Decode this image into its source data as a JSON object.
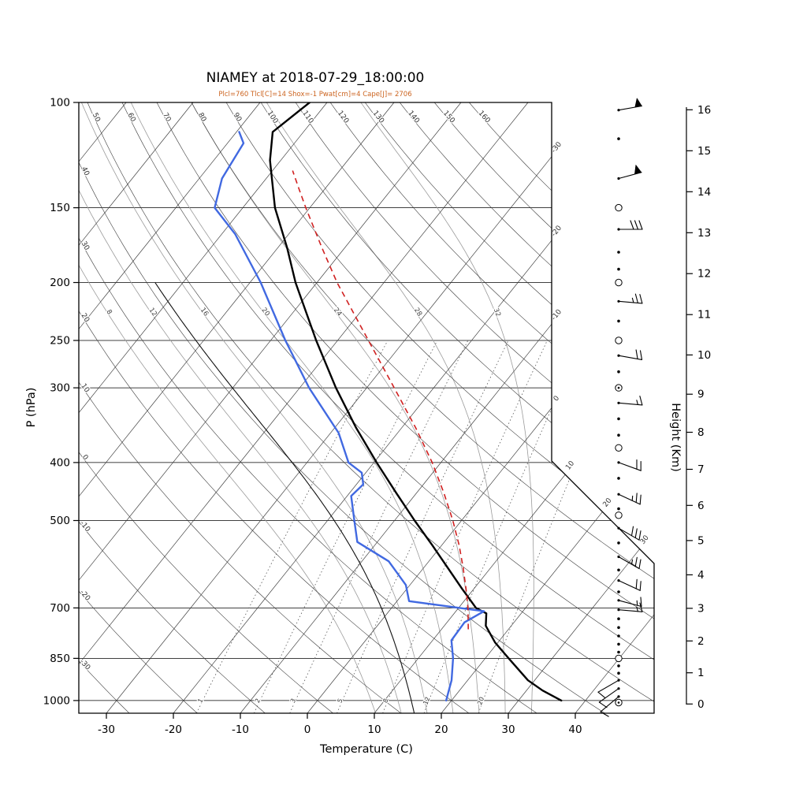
{
  "title": "NIAMEY at 2018-07-29_18:00:00",
  "subtitle": "Plcl=760 Tlcl[C]=14 Shox=-1 Pwat[cm]=4 Cape[J]= 2706",
  "colors": {
    "temperature": "#000000",
    "dewpoint": "#4169e1",
    "parcel": "#d02020",
    "subtitle": "#cc6420",
    "aux_adiabat": "#111111"
  },
  "chart_data": {
    "type": "skewt_log_p_sounding",
    "station": "NIAMEY",
    "datetime": "2018-07-29_18:00:00",
    "parameters": {
      "Plcl": 760,
      "Tlcl_C": 14,
      "Shox": -1,
      "Pwat_cm": 4,
      "Cape_J": 2706
    },
    "xlabel": "Temperature (C)",
    "ylabel": "P (hPa)",
    "y2label": "Height (Km)",
    "pressure_range_hPa": [
      100,
      1050
    ],
    "temperature_axis_range_C": [
      -30,
      40
    ],
    "pressure_ticks": [
      100,
      150,
      200,
      250,
      300,
      400,
      500,
      700,
      850,
      1000
    ],
    "temp_ticks": [
      -30,
      -20,
      -10,
      0,
      10,
      20,
      30,
      40
    ],
    "height_ticks_km": [
      0,
      1,
      2,
      3,
      4,
      5,
      6,
      7,
      8,
      9,
      10,
      11,
      12,
      13,
      14,
      15,
      16
    ],
    "isotherms": {
      "min": -100,
      "max": 40,
      "step": 10,
      "labeled": [
        -30,
        -20,
        -10,
        0,
        10,
        20,
        30
      ]
    },
    "dry_adiabats": {
      "min": -30,
      "max": 160,
      "step": 10,
      "top_edge_labels": [
        50,
        60,
        70,
        80,
        90,
        100,
        110,
        120,
        130,
        140,
        150,
        160
      ],
      "left_edge_labels": [
        40,
        30,
        20,
        10,
        0,
        -10,
        -20,
        -30
      ]
    },
    "moist_adiabats": {
      "values": [
        8,
        12,
        16,
        20,
        24,
        28,
        32
      ],
      "label_pressure_hPa": 225
    },
    "mixing_ratio_g_kg": [
      1,
      2,
      3,
      5,
      8,
      12,
      20
    ],
    "aux_moist_adiabat": {
      "theta_w": 14
    },
    "temperature_profile": [
      [
        1000,
        36.4
      ],
      [
        962,
        32.4
      ],
      [
        925,
        29.0
      ],
      [
        850,
        23.5
      ],
      [
        800,
        19.6
      ],
      [
        750,
        16.2
      ],
      [
        715,
        14.8
      ],
      [
        700,
        12.6
      ],
      [
        650,
        8.2
      ],
      [
        600,
        3.6
      ],
      [
        550,
        -1.4
      ],
      [
        500,
        -7.0
      ],
      [
        450,
        -13.0
      ],
      [
        400,
        -19.6
      ],
      [
        350,
        -26.8
      ],
      [
        300,
        -34.6
      ],
      [
        250,
        -43.2
      ],
      [
        200,
        -53.2
      ],
      [
        175,
        -58.6
      ],
      [
        150,
        -65.2
      ],
      [
        125,
        -71.6
      ],
      [
        112,
        -74.6
      ],
      [
        100,
        -72.6
      ]
    ],
    "dewpoint_profile": [
      [
        1000,
        19.2
      ],
      [
        962,
        18.4
      ],
      [
        925,
        17.6
      ],
      [
        850,
        15.2
      ],
      [
        793,
        12.8
      ],
      [
        740,
        12.6
      ],
      [
        709,
        14.2
      ],
      [
        682,
        1.8
      ],
      [
        641,
        -0.6
      ],
      [
        585,
        -6.0
      ],
      [
        543,
        -13.0
      ],
      [
        500,
        -16.0
      ],
      [
        455,
        -19.4
      ],
      [
        435,
        -19.0
      ],
      [
        416,
        -20.6
      ],
      [
        400,
        -23.8
      ],
      [
        357,
        -28.8
      ],
      [
        300,
        -38.6
      ],
      [
        250,
        -47.8
      ],
      [
        200,
        -58.4
      ],
      [
        166,
        -68.0
      ],
      [
        150,
        -74.2
      ],
      [
        134,
        -76.6
      ],
      [
        117,
        -77.6
      ],
      [
        112,
        -79.6
      ]
    ],
    "parcel_path": [
      [
        760,
        14.0
      ],
      [
        700,
        11.4
      ],
      [
        650,
        8.8
      ],
      [
        600,
        5.9
      ],
      [
        550,
        2.6
      ],
      [
        500,
        -1.3
      ],
      [
        450,
        -5.9
      ],
      [
        400,
        -11.3
      ],
      [
        350,
        -17.9
      ],
      [
        300,
        -25.9
      ],
      [
        250,
        -35.4
      ],
      [
        200,
        -47.0
      ],
      [
        175,
        -53.4
      ],
      [
        150,
        -60.6
      ],
      [
        140,
        -63.7
      ],
      [
        130,
        -67.0
      ]
    ],
    "winds": [
      {
        "p": 103,
        "type": "barb",
        "kt": 50,
        "dir": 80
      },
      {
        "p": 115,
        "type": "dot"
      },
      {
        "p": 134,
        "type": "barb",
        "kt": 50,
        "dir": 75
      },
      {
        "p": 150,
        "type": "circle"
      },
      {
        "p": 163,
        "type": "barb",
        "kt": 30,
        "dir": 90
      },
      {
        "p": 178,
        "type": "dot"
      },
      {
        "p": 190,
        "type": "dot"
      },
      {
        "p": 200,
        "type": "circle"
      },
      {
        "p": 215,
        "type": "barb",
        "kt": 25,
        "dir": 95
      },
      {
        "p": 232,
        "type": "dot"
      },
      {
        "p": 250,
        "type": "circle"
      },
      {
        "p": 265,
        "type": "barb",
        "kt": 20,
        "dir": 100
      },
      {
        "p": 282,
        "type": "dot"
      },
      {
        "p": 300,
        "type": "circledot"
      },
      {
        "p": 318,
        "type": "barb",
        "kt": 15,
        "dir": 95
      },
      {
        "p": 338,
        "type": "dot"
      },
      {
        "p": 360,
        "type": "dot"
      },
      {
        "p": 378,
        "type": "circle"
      },
      {
        "p": 400,
        "type": "barb",
        "kt": 20,
        "dir": 110
      },
      {
        "p": 425,
        "type": "dot"
      },
      {
        "p": 452,
        "type": "barb",
        "kt": 25,
        "dir": 115
      },
      {
        "p": 478,
        "type": "dot"
      },
      {
        "p": 490,
        "type": "circle"
      },
      {
        "p": 515,
        "type": "barb",
        "kt": 30,
        "dir": 120
      },
      {
        "p": 545,
        "type": "dot"
      },
      {
        "p": 575,
        "type": "barb",
        "kt": 25,
        "dir": 120
      },
      {
        "p": 605,
        "type": "dot"
      },
      {
        "p": 630,
        "type": "barb",
        "kt": 20,
        "dir": 115
      },
      {
        "p": 658,
        "type": "dot"
      },
      {
        "p": 680,
        "type": "barb",
        "kt": 15,
        "dir": 105
      },
      {
        "p": 705,
        "type": "barb",
        "kt": 15,
        "dir": 95
      },
      {
        "p": 730,
        "type": "dot"
      },
      {
        "p": 755,
        "type": "dot"
      },
      {
        "p": 780,
        "type": "dot"
      },
      {
        "p": 805,
        "type": "dot"
      },
      {
        "p": 830,
        "type": "dot"
      },
      {
        "p": 850,
        "type": "circle"
      },
      {
        "p": 875,
        "type": "dot"
      },
      {
        "p": 900,
        "type": "dot"
      },
      {
        "p": 925,
        "type": "barb",
        "kt": 10,
        "dir": 240
      },
      {
        "p": 955,
        "type": "barb",
        "kt": 10,
        "dir": 235
      },
      {
        "p": 985,
        "type": "barb",
        "kt": 8,
        "dir": 230
      },
      {
        "p": 1008,
        "type": "circledot"
      }
    ]
  }
}
